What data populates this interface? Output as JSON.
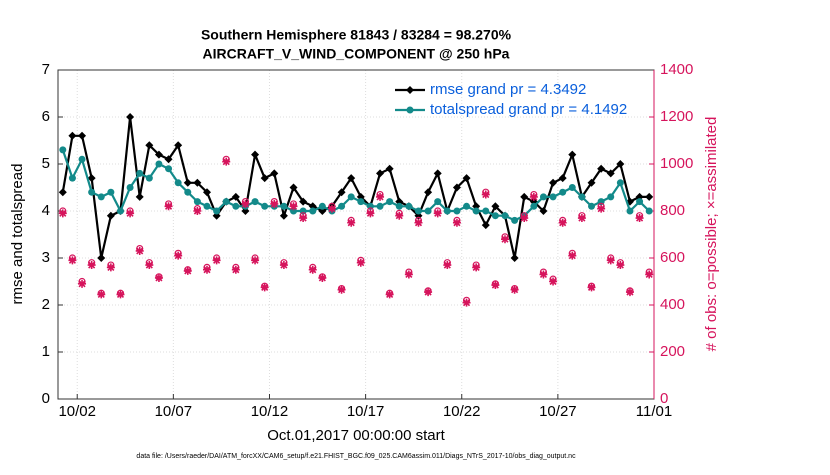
{
  "chart_data": {
    "type": "line",
    "title": [
      "Southern Hemisphere 81843 / 83284 = 98.270%",
      "AIRCRAFT_V_WIND_COMPONENT @ 250 hPa"
    ],
    "xlabel": "Oct.01,2017 00:00:00 start",
    "ylabel": "rmse and totalspread",
    "y2label": "# of obs: o=possible; ×=assimilated",
    "footer": "data file: /Users/raeder/DAI/ATM_forcXX/CAM6_setup/f.e21.FHIST_BGC.f09_025.CAM6assim.011/Diags_NTrS_2017-10/obs_diag_output.nc",
    "xlim": [
      0,
      31
    ],
    "xticks": [
      {
        "value": 1,
        "label": "10/02"
      },
      {
        "value": 6,
        "label": "10/07"
      },
      {
        "value": 11,
        "label": "10/12"
      },
      {
        "value": 16,
        "label": "10/17"
      },
      {
        "value": 21,
        "label": "10/22"
      },
      {
        "value": 26,
        "label": "10/27"
      },
      {
        "value": 31,
        "label": "11/01"
      }
    ],
    "ylim": [
      0,
      7
    ],
    "yticks": [
      0,
      1,
      2,
      3,
      4,
      5,
      6,
      7
    ],
    "y2lim": [
      0,
      1400
    ],
    "y2ticks": [
      0,
      200,
      400,
      600,
      800,
      1000,
      1200,
      1400
    ],
    "grid": true,
    "x": [
      0.25,
      0.75,
      1.25,
      1.75,
      2.25,
      2.75,
      3.25,
      3.75,
      4.25,
      4.75,
      5.25,
      5.75,
      6.25,
      6.75,
      7.25,
      7.75,
      8.25,
      8.75,
      9.25,
      9.75,
      10.25,
      10.75,
      11.25,
      11.75,
      12.25,
      12.75,
      13.25,
      13.75,
      14.25,
      14.75,
      15.25,
      15.75,
      16.25,
      16.75,
      17.25,
      17.75,
      18.25,
      18.75,
      19.25,
      19.75,
      20.25,
      20.75,
      21.25,
      21.75,
      22.25,
      22.75,
      23.25,
      23.75,
      24.25,
      24.75,
      25.25,
      25.75,
      26.25,
      26.75,
      27.25,
      27.75,
      28.25,
      28.75,
      29.25,
      29.75,
      30.25,
      30.75
    ],
    "series": [
      {
        "name": "rmse grand pr = 4.3492",
        "color": "#000000",
        "marker": "diamond",
        "values": [
          4.4,
          5.6,
          5.6,
          4.7,
          3.0,
          3.9,
          4.0,
          6.0,
          4.3,
          5.4,
          5.2,
          5.1,
          5.4,
          4.6,
          4.6,
          4.4,
          3.9,
          4.2,
          4.3,
          4.0,
          5.2,
          4.7,
          4.8,
          3.9,
          4.5,
          4.2,
          4.1,
          4.0,
          4.1,
          4.4,
          4.7,
          4.3,
          4.1,
          4.8,
          4.9,
          4.2,
          4.1,
          3.9,
          4.4,
          4.8,
          4.0,
          4.5,
          4.7,
          4.1,
          3.7,
          4.1,
          3.9,
          3.0,
          4.3,
          4.2,
          4.0,
          4.6,
          4.7,
          5.2,
          4.3,
          4.6,
          4.9,
          4.8,
          5.0,
          4.2,
          4.3,
          4.3
        ]
      },
      {
        "name": "totalspread grand pr = 4.1492",
        "color": "#138a8a",
        "marker": "circle",
        "values": [
          5.3,
          4.7,
          5.1,
          4.4,
          4.3,
          4.4,
          4.0,
          4.5,
          4.8,
          4.7,
          5.0,
          4.9,
          4.6,
          4.4,
          4.2,
          4.1,
          4.0,
          4.2,
          4.1,
          4.1,
          4.2,
          4.1,
          4.1,
          4.1,
          4.0,
          4.0,
          4.0,
          4.1,
          4.0,
          4.1,
          4.3,
          4.2,
          4.1,
          4.1,
          4.2,
          4.1,
          4.1,
          4.0,
          4.0,
          4.2,
          4.0,
          4.0,
          4.1,
          4.0,
          4.0,
          3.9,
          3.9,
          3.8,
          3.9,
          4.1,
          4.3,
          4.3,
          4.4,
          4.5,
          4.3,
          4.1,
          4.2,
          4.3,
          4.6,
          4.0,
          4.2,
          4.0
        ]
      },
      {
        "color": "#d6145c",
        "marker": "open-circle",
        "axis": "y2",
        "values": [
          800,
          600,
          500,
          580,
          450,
          570,
          450,
          800,
          640,
          580,
          520,
          830,
          620,
          550,
          810,
          560,
          600,
          1020,
          560,
          840,
          600,
          480,
          840,
          580,
          830,
          780,
          560,
          520,
          820,
          470,
          760,
          590,
          800,
          870,
          450,
          790,
          540,
          760,
          460,
          800,
          580,
          760,
          420,
          570,
          880,
          490,
          690,
          470,
          780,
          870,
          540,
          510,
          760,
          620,
          780,
          480,
          820,
          600,
          580,
          460,
          780,
          540
        ]
      },
      {
        "color": "#d6145c",
        "marker": "asterisk",
        "axis": "y2",
        "values": [
          790,
          590,
          490,
          570,
          445,
          560,
          445,
          790,
          630,
          570,
          515,
          820,
          610,
          545,
          800,
          550,
          590,
          1010,
          550,
          830,
          590,
          475,
          830,
          570,
          820,
          770,
          550,
          515,
          810,
          465,
          750,
          580,
          790,
          860,
          445,
          780,
          530,
          750,
          455,
          790,
          570,
          750,
          410,
          560,
          870,
          485,
          680,
          465,
          770,
          860,
          530,
          500,
          750,
          610,
          770,
          475,
          810,
          590,
          570,
          455,
          770,
          530
        ]
      }
    ]
  }
}
